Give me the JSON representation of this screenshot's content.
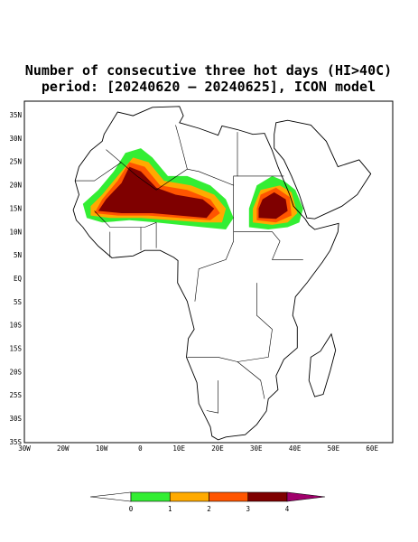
{
  "title": {
    "line1": "Number of consecutive three hot days (HI>40C)",
    "line2": "period: [20240620 – 20240625], ICON model"
  },
  "map": {
    "lat_labels": [
      "35N",
      "30N",
      "25N",
      "20N",
      "15N",
      "10N",
      "5N",
      "EQ",
      "5S",
      "10S",
      "15S",
      "20S",
      "25S",
      "30S",
      "35S"
    ],
    "lon_labels": [
      "30W",
      "20W",
      "10W",
      "0",
      "10E",
      "20E",
      "30E",
      "40E",
      "50E",
      "60E"
    ]
  },
  "colorbar": {
    "labels": [
      0,
      1,
      2,
      3,
      4
    ],
    "colors": [
      "#ffffff",
      "#33ee33",
      "#ffaa00",
      "#ff5500",
      "#7f0000",
      "#a0006b"
    ]
  }
}
